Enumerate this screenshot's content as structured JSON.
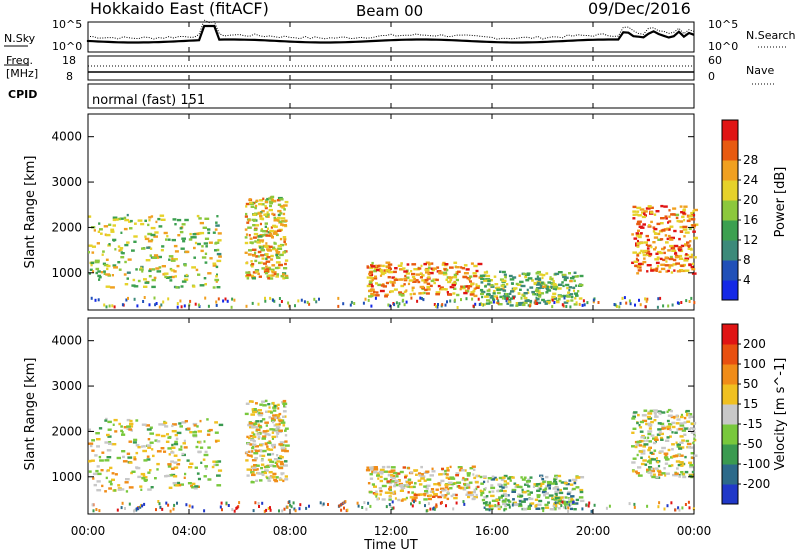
{
  "header": {
    "title": "Hokkaido East (fitACF)",
    "beam": "Beam 00",
    "date": "09/Dec/2016"
  },
  "panels": {
    "nsky_label": "N.Sky",
    "nsky_ticks": [
      "10^5",
      "10^0"
    ],
    "nsearch_label": "N.Search",
    "nsearch_ticks": [
      "10^5",
      "10^0"
    ],
    "freq_label": "Freq.",
    "freq_unit": "[MHz]",
    "freq_ticks": [
      "18",
      "8"
    ],
    "nave_label": "Nave",
    "nave_ticks": [
      "60",
      "0"
    ],
    "cpid_label": "CPID",
    "cpid_value": "normal (fast) 151"
  },
  "chart_data": [
    {
      "type": "heatmap",
      "title": "",
      "ylabel": "Slant Range [km]",
      "xlabel": "",
      "xticks": [
        "00:00",
        "04:00",
        "08:00",
        "12:00",
        "16:00",
        "20:00",
        "00:00"
      ],
      "yticks": [
        "1000",
        "2000",
        "3000",
        "4000"
      ],
      "ylim": [
        180,
        4500
      ],
      "colorbar": {
        "label": "Power [dB]",
        "ticks": [
          "4",
          "8",
          "12",
          "16",
          "20",
          "24",
          "28"
        ],
        "colors": [
          "#1428e6",
          "#2050b8",
          "#3c8a7a",
          "#3ca050",
          "#8cc83c",
          "#e6d22a",
          "#f0a020",
          "#e85a10",
          "#e01414"
        ]
      },
      "regions": [
        {
          "x": [
            0.0,
            5.2
          ],
          "y": [
            700,
            2300
          ],
          "level": 0.55
        },
        {
          "x": [
            6.2,
            7.8
          ],
          "y": [
            900,
            2700
          ],
          "level": 0.65
        },
        {
          "x": [
            11.0,
            15.5
          ],
          "y": [
            500,
            1250
          ],
          "level": 0.75
        },
        {
          "x": [
            15.5,
            19.5
          ],
          "y": [
            300,
            1050
          ],
          "level": 0.45
        },
        {
          "x": [
            21.5,
            24.0
          ],
          "y": [
            1000,
            2500
          ],
          "level": 0.8
        }
      ]
    },
    {
      "type": "heatmap",
      "title": "",
      "ylabel": "Slant Range [km]",
      "xlabel": "Time UT",
      "xticks": [
        "00:00",
        "04:00",
        "08:00",
        "12:00",
        "16:00",
        "20:00",
        "00:00"
      ],
      "yticks": [
        "1000",
        "2000",
        "3000",
        "4000"
      ],
      "ylim": [
        180,
        4500
      ],
      "colorbar": {
        "label": "Velocity [m s^-1]",
        "ticks": [
          "200",
          "100",
          "50",
          "15",
          "-15",
          "-50",
          "-100",
          "-200"
        ],
        "colors": [
          "#2038c8",
          "#2c6a8a",
          "#3a9a50",
          "#78c83c",
          "#c8c8c8",
          "#f0c020",
          "#f08c18",
          "#e85010",
          "#e01414"
        ]
      },
      "regions": [
        {
          "x": [
            0.0,
            5.2
          ],
          "y": [
            700,
            2300
          ],
          "level": 0.5
        },
        {
          "x": [
            6.2,
            7.8
          ],
          "y": [
            900,
            2700
          ],
          "level": 0.55
        },
        {
          "x": [
            11.0,
            15.5
          ],
          "y": [
            500,
            1250
          ],
          "level": 0.6
        },
        {
          "x": [
            15.5,
            19.5
          ],
          "y": [
            300,
            1050
          ],
          "level": 0.4
        },
        {
          "x": [
            21.5,
            24.0
          ],
          "y": [
            1000,
            2500
          ],
          "level": 0.5
        }
      ]
    }
  ]
}
